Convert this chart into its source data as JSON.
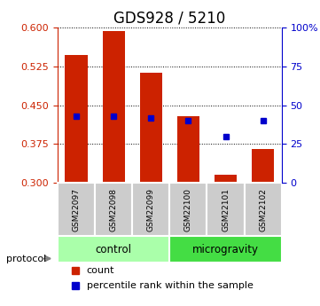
{
  "title": "GDS928 / 5210",
  "samples": [
    "GSM22097",
    "GSM22098",
    "GSM22099",
    "GSM22100",
    "GSM22101",
    "GSM22102"
  ],
  "bar_tops": [
    0.547,
    0.593,
    0.512,
    0.428,
    0.315,
    0.365
  ],
  "bar_base": 0.3,
  "percentile_ranks": [
    43,
    43,
    42,
    40,
    30,
    40
  ],
  "ylim_left": [
    0.3,
    0.6
  ],
  "ylim_right": [
    0,
    100
  ],
  "yticks_left": [
    0.3,
    0.375,
    0.45,
    0.525,
    0.6
  ],
  "yticks_right": [
    0,
    25,
    50,
    75,
    100
  ],
  "ytick_labels_right": [
    "0",
    "25",
    "50",
    "75",
    "100%"
  ],
  "bar_color": "#cc2200",
  "square_color": "#0000cc",
  "grid_color": "#000000",
  "control_samples": [
    0,
    1,
    2
  ],
  "microgravity_samples": [
    3,
    4,
    5
  ],
  "control_label": "control",
  "microgravity_label": "microgravity",
  "protocol_label": "protocol",
  "legend_count": "count",
  "legend_percentile": "percentile rank within the sample",
  "bg_sample_color": "#cccccc",
  "bg_control_color": "#aaffaa",
  "bg_microgravity_color": "#44dd44",
  "title_fontsize": 12,
  "tick_fontsize": 8,
  "label_fontsize": 9
}
